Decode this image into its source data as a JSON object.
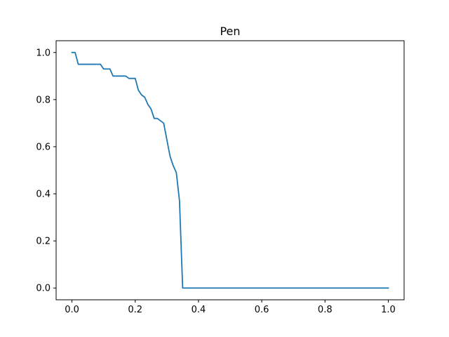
{
  "chart_data": {
    "type": "line",
    "title": "Pen",
    "xlabel": "",
    "ylabel": "",
    "xlim": [
      -0.05,
      1.05
    ],
    "ylim": [
      -0.05,
      1.05
    ],
    "x_ticks": [
      0.0,
      0.2,
      0.4,
      0.6,
      0.8,
      1.0
    ],
    "x_tick_labels": [
      "0.0",
      "0.2",
      "0.4",
      "0.6",
      "0.8",
      "1.0"
    ],
    "y_ticks": [
      0.0,
      0.2,
      0.4,
      0.6,
      0.8,
      1.0
    ],
    "y_tick_labels": [
      "0.0",
      "0.2",
      "0.4",
      "0.6",
      "0.8",
      "1.0"
    ],
    "grid": false,
    "legend": "none",
    "line_color": "#1f77b4",
    "series": [
      {
        "x": [
          0.0,
          0.01,
          0.02,
          0.09,
          0.1,
          0.12,
          0.13,
          0.17,
          0.18,
          0.2,
          0.21,
          0.22,
          0.23,
          0.24,
          0.25,
          0.26,
          0.27,
          0.28,
          0.29,
          0.3,
          0.31,
          0.32,
          0.33,
          0.34,
          0.35,
          1.0
        ],
        "y": [
          1.0,
          1.0,
          0.95,
          0.95,
          0.93,
          0.93,
          0.9,
          0.9,
          0.89,
          0.89,
          0.84,
          0.82,
          0.81,
          0.78,
          0.76,
          0.72,
          0.72,
          0.71,
          0.7,
          0.63,
          0.56,
          0.52,
          0.49,
          0.37,
          0.0,
          0.0
        ]
      }
    ]
  }
}
